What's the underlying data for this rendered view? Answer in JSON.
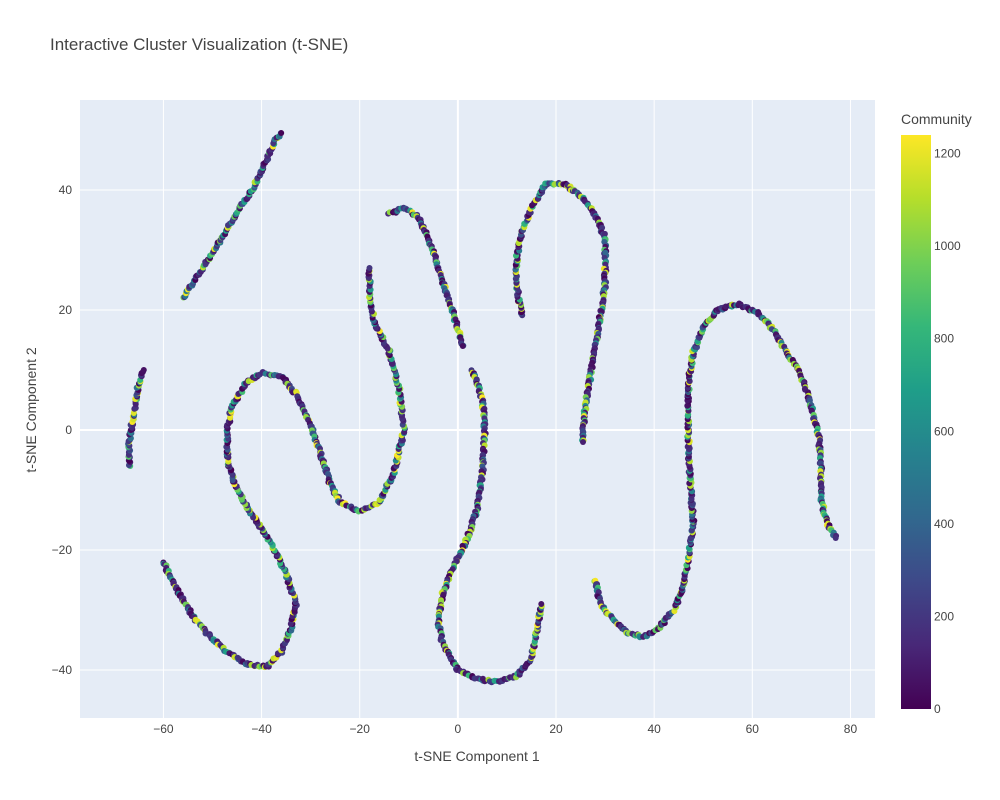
{
  "chart_data": {
    "type": "scatter",
    "title": "Interactive Cluster Visualization (t-SNE)",
    "xlabel": "t-SNE Component 1",
    "ylabel": "t-SNE Component 2",
    "xlim": [
      -77,
      85
    ],
    "ylim": [
      -48,
      55
    ],
    "x_ticks": [
      -60,
      -40,
      -20,
      0,
      20,
      40,
      60,
      80
    ],
    "y_ticks": [
      -40,
      -20,
      0,
      20,
      40
    ],
    "x_tick_labels": [
      "−60",
      "−40",
      "−20",
      "0",
      "20",
      "40",
      "60",
      "80"
    ],
    "y_tick_labels": [
      "−40",
      "−20",
      "0",
      "20",
      "40"
    ],
    "grid": true,
    "colorbar": {
      "title": "Community",
      "range": [
        0,
        1240
      ],
      "ticks": [
        0,
        200,
        400,
        600,
        800,
        1000,
        1200
      ],
      "tick_labels": [
        "0",
        "200",
        "400",
        "600",
        "800",
        "1000",
        "1200"
      ],
      "colorscale": [
        "#440154",
        "#482878",
        "#3e4989",
        "#31688e",
        "#26828e",
        "#1f9e89",
        "#35b779",
        "#6ece58",
        "#b5de2b",
        "#fde725"
      ]
    },
    "series": [
      {
        "points": [
          [
            -56,
            22
          ],
          [
            -54,
            24.5
          ],
          [
            -52,
            27
          ],
          [
            -50,
            29.5
          ],
          [
            -48,
            32
          ],
          [
            -46,
            35
          ],
          [
            -44,
            37.5
          ],
          [
            -42,
            40
          ],
          [
            -40,
            43
          ],
          [
            -39,
            45
          ],
          [
            -38,
            47
          ],
          [
            -37,
            48.5
          ],
          [
            -36,
            49.5
          ]
        ]
      },
      {
        "points": [
          [
            -67,
            -6
          ],
          [
            -67,
            -4
          ],
          [
            -67,
            -2
          ],
          [
            -66.5,
            0.5
          ],
          [
            -66,
            3
          ],
          [
            -65.5,
            5.5
          ],
          [
            -65,
            8
          ],
          [
            -64,
            10
          ]
        ]
      },
      {
        "points": [
          [
            -60,
            -22
          ],
          [
            -57,
            -27
          ],
          [
            -54,
            -31
          ],
          [
            -51,
            -34
          ],
          [
            -47,
            -37
          ],
          [
            -43,
            -39
          ],
          [
            -39,
            -39.5
          ],
          [
            -36,
            -37
          ],
          [
            -34,
            -33
          ],
          [
            -33,
            -29
          ],
          [
            -35,
            -24
          ],
          [
            -38,
            -19
          ],
          [
            -42,
            -14
          ],
          [
            -45,
            -10
          ],
          [
            -47,
            -5
          ],
          [
            -47,
            0
          ],
          [
            -46,
            4
          ],
          [
            -43,
            8
          ],
          [
            -40,
            9.5
          ],
          [
            -36,
            9
          ],
          [
            -33,
            6
          ],
          [
            -30,
            1
          ],
          [
            -28,
            -4
          ],
          [
            -26,
            -9
          ],
          [
            -24,
            -12
          ],
          [
            -20,
            -13.5
          ],
          [
            -16,
            -12
          ],
          [
            -13,
            -7
          ],
          [
            -11,
            0
          ],
          [
            -12,
            7
          ],
          [
            -14,
            13
          ],
          [
            -17,
            18
          ],
          [
            -18,
            22
          ],
          [
            -18,
            27
          ]
        ]
      },
      {
        "points": [
          [
            -14,
            36
          ],
          [
            -11,
            37
          ],
          [
            -8,
            35.5
          ],
          [
            -6,
            32
          ],
          [
            -4,
            27
          ],
          [
            -2,
            22
          ],
          [
            0,
            17
          ],
          [
            1,
            14
          ]
        ]
      },
      {
        "points": [
          [
            3,
            10
          ],
          [
            5,
            5
          ],
          [
            5.5,
            0
          ],
          [
            5,
            -7
          ],
          [
            4,
            -13
          ],
          [
            2,
            -18
          ],
          [
            -1,
            -23
          ],
          [
            -3,
            -27
          ],
          [
            -4,
            -32
          ],
          [
            -3,
            -36
          ],
          [
            0,
            -40
          ],
          [
            4,
            -41.5
          ],
          [
            8,
            -42
          ],
          [
            12,
            -41
          ],
          [
            15,
            -38
          ],
          [
            16,
            -34
          ],
          [
            17,
            -29
          ]
        ]
      },
      {
        "points": [
          [
            13,
            19
          ],
          [
            12,
            24
          ],
          [
            12,
            29
          ],
          [
            13,
            33
          ],
          [
            15,
            37
          ],
          [
            18,
            41
          ],
          [
            22,
            41
          ],
          [
            25,
            39
          ],
          [
            28,
            36
          ],
          [
            30,
            32
          ],
          [
            30,
            28
          ],
          [
            30,
            24
          ],
          [
            29,
            19
          ],
          [
            28,
            14
          ],
          [
            27,
            9
          ],
          [
            26,
            4
          ],
          [
            25.5,
            0
          ],
          [
            25.5,
            -2
          ]
        ]
      },
      {
        "points": [
          [
            28,
            -25
          ],
          [
            29,
            -29
          ],
          [
            32,
            -32
          ],
          [
            35,
            -34
          ],
          [
            38,
            -34.5
          ],
          [
            41,
            -33
          ],
          [
            44,
            -30
          ],
          [
            46,
            -26
          ],
          [
            47,
            -21
          ],
          [
            48,
            -16
          ],
          [
            47.5,
            -10
          ],
          [
            47,
            -4
          ],
          [
            47,
            2
          ],
          [
            47,
            8
          ],
          [
            48,
            13
          ],
          [
            50,
            17
          ],
          [
            53,
            20
          ],
          [
            57,
            21
          ],
          [
            61,
            19.5
          ],
          [
            64,
            17
          ],
          [
            67,
            13
          ],
          [
            70,
            9
          ],
          [
            72,
            4
          ],
          [
            73.5,
            -1
          ],
          [
            74,
            -6
          ],
          [
            74,
            -11
          ],
          [
            75,
            -15
          ],
          [
            77,
            -18
          ]
        ]
      }
    ]
  }
}
